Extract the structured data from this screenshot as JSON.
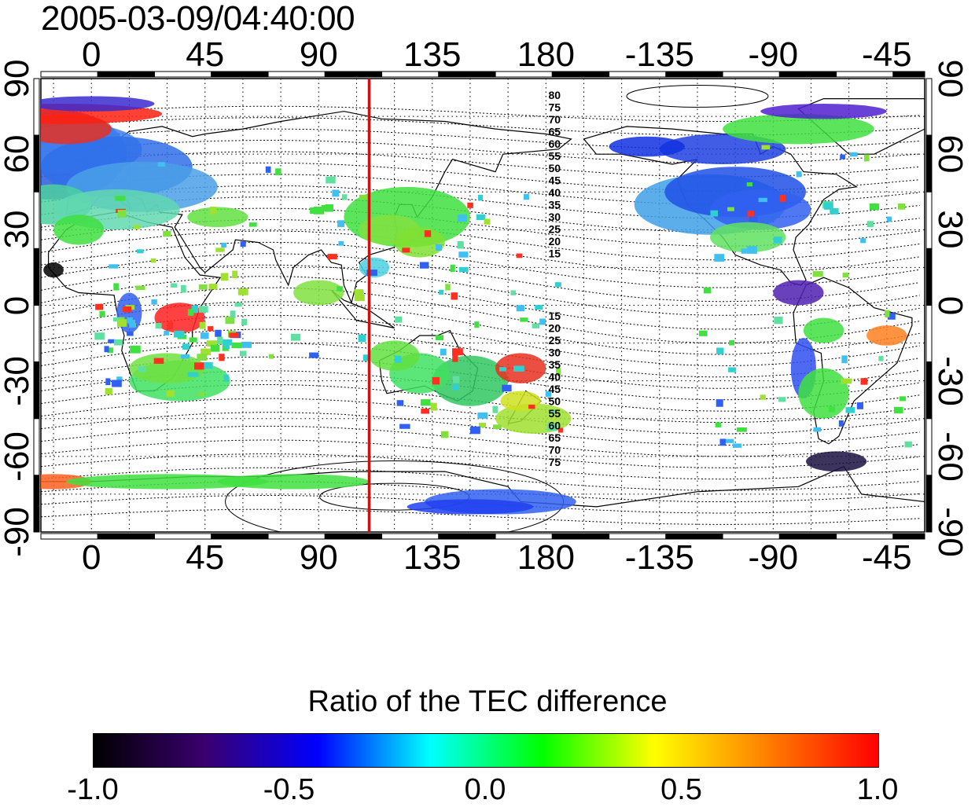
{
  "timestamp": "2005-03-09/04:40:00",
  "map": {
    "x_ticks": [
      "0",
      "45",
      "90",
      "135",
      "180",
      "-135",
      "-90",
      "-45"
    ],
    "x_tick_lons": [
      0,
      45,
      90,
      135,
      180,
      225,
      270,
      315
    ],
    "lon_range": [
      -20,
      330
    ],
    "y_ticks_left": [
      "90",
      "60",
      "30",
      "0",
      "-30",
      "-60",
      "-90"
    ],
    "y_ticks_right": [
      "90",
      "60",
      "30",
      "0",
      "-30",
      "-60",
      "-90"
    ],
    "y_tick_lats": [
      90,
      60,
      30,
      0,
      -30,
      -60,
      -90
    ],
    "lat_range": [
      -90,
      90
    ],
    "meridian_marker_lon": 110,
    "meridian_marker_color": "#d01010",
    "contour_labels_north": [
      "80",
      "75",
      "70",
      "65",
      "60",
      "55",
      "50",
      "45",
      "40",
      "35",
      "30",
      "25",
      "20",
      "15"
    ],
    "contour_labels_south": [
      "15",
      "20",
      "25",
      "30",
      "35",
      "40",
      "45",
      "50",
      "55",
      "60",
      "65",
      "70",
      "75"
    ]
  },
  "colorbar": {
    "title": "Ratio of the TEC difference",
    "labels": [
      "-1.0",
      "-0.5",
      "0.0",
      "0.5",
      "1.0"
    ],
    "range": [
      -1.0,
      1.0
    ],
    "colors": [
      "#000000",
      "#3a0070",
      "#0000ff",
      "#00ffff",
      "#00ff00",
      "#ffff00",
      "#ff8000",
      "#ff0000"
    ]
  }
}
